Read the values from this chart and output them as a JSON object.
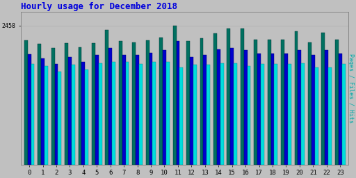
{
  "title": "Hourly usage for December 2018",
  "title_color": "#0000dd",
  "title_fontsize": 9,
  "background_color": "#c0c0c0",
  "plot_bg_color": "#c0c0c0",
  "hours": [
    0,
    1,
    2,
    3,
    4,
    5,
    6,
    7,
    8,
    9,
    10,
    11,
    12,
    13,
    14,
    15,
    16,
    17,
    18,
    19,
    20,
    21,
    22,
    23
  ],
  "ytick_label": "2458",
  "ylabel_right": "Pages / Files / Hits",
  "ylabel_color": "#00aaaa",
  "hits": [
    2200,
    2130,
    2060,
    2140,
    2070,
    2150,
    2380,
    2180,
    2160,
    2200,
    2240,
    2458,
    2180,
    2230,
    2320,
    2400,
    2400,
    2210,
    2210,
    2210,
    2360,
    2160,
    2330,
    2210
  ],
  "files": [
    1950,
    1880,
    1780,
    1900,
    1820,
    1940,
    2060,
    1940,
    1940,
    1980,
    2020,
    2180,
    1900,
    1940,
    2040,
    2060,
    2020,
    1960,
    1960,
    1960,
    2020,
    1940,
    2020,
    1960
  ],
  "pages": [
    1780,
    1740,
    1640,
    1760,
    1680,
    1790,
    1810,
    1810,
    1780,
    1820,
    1820,
    1720,
    1760,
    1760,
    1790,
    1790,
    1740,
    1780,
    1780,
    1780,
    1790,
    1720,
    1710,
    1780
  ],
  "hits_color": "#007060",
  "files_color": "#0000cc",
  "pages_color": "#00dddd",
  "ylim_max": 2700,
  "bar_width": 0.25
}
